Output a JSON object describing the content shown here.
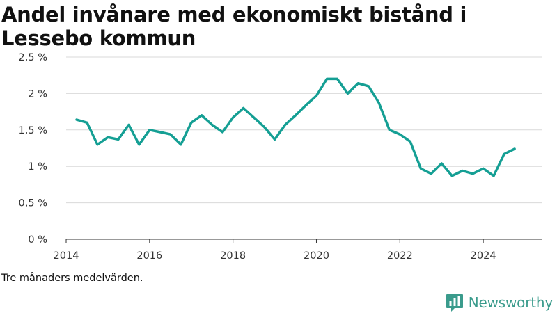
{
  "chart_data": {
    "type": "line",
    "title": "Andel invånare med ekonomiskt bistånd i Lessebo kommun",
    "xlabel": "",
    "ylabel": "",
    "ylim": [
      0,
      2.5
    ],
    "xlim": [
      2014.0,
      2025.4
    ],
    "y_ticks": [
      {
        "value": 0,
        "label": "0 %"
      },
      {
        "value": 0.5,
        "label": "0,5 %"
      },
      {
        "value": 1,
        "label": "1 %"
      },
      {
        "value": 1.5,
        "label": "1,5 %"
      },
      {
        "value": 2,
        "label": "2 %"
      },
      {
        "value": 2.5,
        "label": "2,5 %"
      }
    ],
    "x_ticks": [
      {
        "value": 2014,
        "label": "2014"
      },
      {
        "value": 2016,
        "label": "2016"
      },
      {
        "value": 2018,
        "label": "2018"
      },
      {
        "value": 2020,
        "label": "2020"
      },
      {
        "value": 2022,
        "label": "2022"
      },
      {
        "value": 2024,
        "label": "2024"
      }
    ],
    "grid": true,
    "line_color": "#159f94",
    "series": [
      {
        "x": [
          2014.25,
          2014.5,
          2014.75,
          2015.0,
          2015.25,
          2015.5,
          2015.75,
          2016.0,
          2016.25,
          2016.5,
          2016.75,
          2017.0,
          2017.25,
          2017.5,
          2017.75,
          2018.0,
          2018.25,
          2018.5,
          2018.75,
          2019.0,
          2019.25,
          2019.5,
          2019.75,
          2020.0,
          2020.25,
          2020.5,
          2020.75,
          2021.0,
          2021.25,
          2021.5,
          2021.75,
          2022.0,
          2022.25,
          2022.5,
          2022.75,
          2023.0,
          2023.25,
          2023.5,
          2023.75,
          2024.0,
          2024.25,
          2024.5,
          2024.75
        ],
        "values": [
          1.64,
          1.6,
          1.3,
          1.4,
          1.37,
          1.57,
          1.3,
          1.5,
          1.47,
          1.44,
          1.3,
          1.6,
          1.7,
          1.57,
          1.47,
          1.67,
          1.8,
          1.67,
          1.54,
          1.37,
          1.57,
          1.7,
          1.84,
          1.97,
          2.2,
          2.2,
          2.0,
          2.14,
          2.1,
          1.87,
          1.5,
          1.44,
          1.34,
          0.97,
          0.9,
          1.04,
          0.87,
          0.94,
          0.9,
          0.97,
          0.87,
          1.17,
          1.24
        ]
      }
    ]
  },
  "footnote": "Tre månaders medelvärden.",
  "brand": {
    "name": "Newsworthy",
    "icon": "newsworthy-logo-icon",
    "color": "#3a9b8c"
  }
}
